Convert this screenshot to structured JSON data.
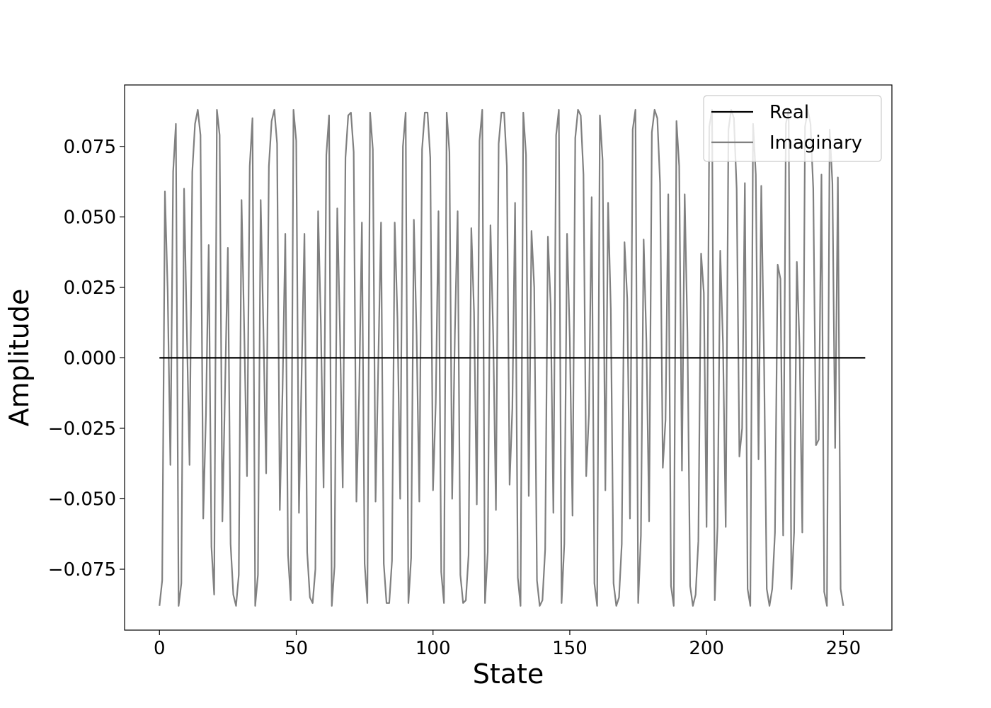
{
  "chart_data": {
    "type": "line",
    "title": "",
    "xlabel": "State",
    "ylabel": "Amplitude",
    "xlim": [
      -12.75,
      267.75
    ],
    "ylim": [
      -0.0966,
      0.0968
    ],
    "xticks": [
      0,
      50,
      100,
      150,
      200,
      250
    ],
    "xtick_labels": [
      "0",
      "50",
      "100",
      "150",
      "200",
      "250"
    ],
    "yticks": [
      -0.075,
      -0.05,
      -0.025,
      0.0,
      0.025,
      0.05,
      0.075
    ],
    "ytick_labels": [
      "−0.075",
      "−0.050",
      "−0.025",
      "0.000",
      "0.025",
      "0.050",
      "0.075"
    ],
    "grid": false,
    "legend_position": "upper right",
    "series": [
      {
        "name": "Real",
        "color": "#000000",
        "x_start": 0,
        "x_step": 1,
        "values": [
          0.0,
          0.0,
          0.0,
          0.0,
          0.0,
          0.0,
          0.0,
          0.0,
          0.0,
          0.0,
          0.0,
          0.0,
          0.0,
          0.0,
          0.0,
          0.0,
          0.0,
          0.0,
          0.0,
          0.0,
          0.0,
          0.0,
          0.0,
          0.0,
          0.0,
          0.0,
          0.0,
          0.0,
          0.0,
          0.0,
          0.0,
          0.0,
          0.0,
          0.0,
          0.0,
          0.0,
          0.0,
          0.0,
          0.0,
          0.0,
          0.0,
          0.0,
          0.0,
          0.0,
          0.0,
          0.0,
          0.0,
          0.0,
          0.0,
          0.0,
          0.0,
          0.0,
          0.0,
          0.0,
          0.0,
          0.0,
          0.0,
          0.0,
          0.0,
          0.0,
          0.0,
          0.0,
          0.0,
          0.0,
          0.0,
          0.0,
          0.0,
          0.0,
          0.0,
          0.0,
          0.0,
          0.0,
          0.0,
          0.0,
          0.0,
          0.0,
          0.0,
          0.0,
          0.0,
          0.0,
          0.0,
          0.0,
          0.0,
          0.0,
          0.0,
          0.0,
          0.0,
          0.0,
          0.0,
          0.0,
          0.0,
          0.0,
          0.0,
          0.0,
          0.0,
          0.0,
          0.0,
          0.0,
          0.0,
          0.0,
          0.0,
          0.0,
          0.0,
          0.0,
          0.0,
          0.0,
          0.0,
          0.0,
          0.0,
          0.0,
          0.0,
          0.0,
          0.0,
          0.0,
          0.0,
          0.0,
          0.0,
          0.0,
          0.0,
          0.0,
          0.0,
          0.0,
          0.0,
          0.0,
          0.0,
          0.0,
          0.0,
          0.0,
          0.0,
          0.0,
          0.0,
          0.0,
          0.0,
          0.0,
          0.0,
          0.0,
          0.0,
          0.0,
          0.0,
          0.0,
          0.0,
          0.0,
          0.0,
          0.0,
          0.0,
          0.0,
          0.0,
          0.0,
          0.0,
          0.0,
          0.0,
          0.0,
          0.0,
          0.0,
          0.0,
          0.0,
          0.0,
          0.0,
          0.0,
          0.0,
          0.0,
          0.0,
          0.0,
          0.0,
          0.0,
          0.0,
          0.0,
          0.0,
          0.0,
          0.0,
          0.0,
          0.0,
          0.0,
          0.0,
          0.0,
          0.0,
          0.0,
          0.0,
          0.0,
          0.0,
          0.0,
          0.0,
          0.0,
          0.0,
          0.0,
          0.0,
          0.0,
          0.0,
          0.0,
          0.0,
          0.0,
          0.0,
          0.0,
          0.0,
          0.0,
          0.0,
          0.0,
          0.0,
          0.0,
          0.0,
          0.0,
          0.0,
          0.0,
          0.0,
          0.0,
          0.0,
          0.0,
          0.0,
          0.0,
          0.0,
          0.0,
          0.0,
          0.0,
          0.0,
          0.0,
          0.0,
          0.0,
          0.0,
          0.0,
          0.0,
          0.0,
          0.0,
          0.0,
          0.0,
          0.0,
          0.0,
          0.0,
          0.0,
          0.0,
          0.0,
          0.0,
          0.0,
          0.0,
          0.0,
          0.0,
          0.0,
          0.0,
          0.0,
          0.0,
          0.0,
          0.0,
          0.0,
          0.0,
          0.0,
          0.0,
          0.0,
          0.0,
          0.0,
          0.0,
          0.0,
          0.0,
          0.0,
          0.0,
          0.0,
          0.0,
          0.0,
          0.0,
          0.0,
          0.0
        ]
      },
      {
        "name": "Imaginary",
        "color": "#808080",
        "x_start": 0,
        "x_step": 1,
        "values": [
          -0.088,
          -0.079,
          0.059,
          0.024,
          -0.038,
          0.066,
          0.083,
          -0.088,
          -0.08,
          0.06,
          0.01,
          -0.038,
          0.066,
          0.083,
          0.088,
          0.079,
          -0.057,
          -0.02,
          0.04,
          -0.067,
          -0.084,
          0.088,
          0.079,
          -0.058,
          -0.01,
          0.039,
          -0.066,
          -0.084,
          -0.088,
          -0.077,
          0.056,
          0.009,
          -0.042,
          0.068,
          0.085,
          -0.088,
          -0.077,
          0.056,
          0.01,
          -0.041,
          0.068,
          0.084,
          0.088,
          0.076,
          -0.054,
          -0.011,
          0.044,
          -0.07,
          -0.086,
          0.088,
          0.077,
          -0.055,
          -0.004,
          0.044,
          -0.069,
          -0.085,
          -0.087,
          -0.075,
          0.052,
          0.012,
          -0.046,
          0.072,
          0.086,
          -0.088,
          -0.074,
          0.053,
          0.009,
          -0.046,
          0.071,
          0.086,
          0.087,
          0.073,
          -0.051,
          -0.013,
          0.048,
          -0.073,
          -0.087,
          0.087,
          0.074,
          -0.051,
          -0.002,
          0.048,
          -0.073,
          -0.087,
          -0.087,
          -0.072,
          0.048,
          0.014,
          -0.05,
          0.075,
          0.087,
          -0.087,
          -0.071,
          0.049,
          0.008,
          -0.051,
          0.074,
          0.087,
          0.087,
          0.071,
          -0.047,
          -0.016,
          0.052,
          -0.076,
          -0.087,
          0.087,
          0.073,
          -0.05,
          0.009,
          0.052,
          -0.077,
          -0.087,
          -0.086,
          -0.07,
          0.046,
          0.016,
          -0.052,
          0.077,
          0.088,
          -0.087,
          -0.069,
          0.047,
          0.008,
          -0.054,
          0.076,
          0.087,
          0.087,
          0.068,
          -0.045,
          -0.018,
          0.055,
          -0.078,
          -0.088,
          0.087,
          0.072,
          -0.049,
          0.045,
          0.025,
          -0.079,
          -0.088,
          -0.086,
          -0.068,
          0.043,
          0.019,
          -0.055,
          0.079,
          0.088,
          -0.087,
          -0.066,
          0.044,
          0.007,
          -0.056,
          0.078,
          0.088,
          0.086,
          0.065,
          -0.042,
          -0.02,
          0.057,
          -0.08,
          -0.088,
          0.086,
          0.07,
          -0.047,
          0.055,
          0.017,
          -0.08,
          -0.088,
          -0.085,
          -0.066,
          0.041,
          0.021,
          -0.057,
          0.081,
          0.088,
          -0.087,
          -0.063,
          0.042,
          0.006,
          -0.058,
          0.08,
          0.088,
          0.085,
          0.062,
          -0.039,
          -0.022,
          0.058,
          -0.081,
          -0.088,
          0.084,
          0.068,
          -0.04,
          0.058,
          0.009,
          -0.081,
          -0.088,
          -0.084,
          -0.065,
          0.037,
          0.023,
          -0.06,
          0.082,
          0.088,
          -0.086,
          -0.06,
          0.038,
          0.005,
          -0.06,
          0.081,
          0.088,
          0.085,
          0.06,
          -0.035,
          -0.025,
          0.062,
          -0.082,
          -0.088,
          0.083,
          0.065,
          -0.036,
          0.061,
          0.0,
          -0.082,
          -0.088,
          -0.082,
          -0.062,
          0.033,
          0.028,
          -0.063,
          0.083,
          0.088,
          -0.082,
          -0.062,
          0.034,
          0.004,
          -0.062,
          0.082,
          0.088,
          0.083,
          0.06,
          -0.031,
          -0.029,
          0.065,
          -0.083,
          -0.088,
          0.081,
          0.062,
          -0.032,
          0.064,
          -0.082,
          -0.088
        ]
      }
    ]
  }
}
